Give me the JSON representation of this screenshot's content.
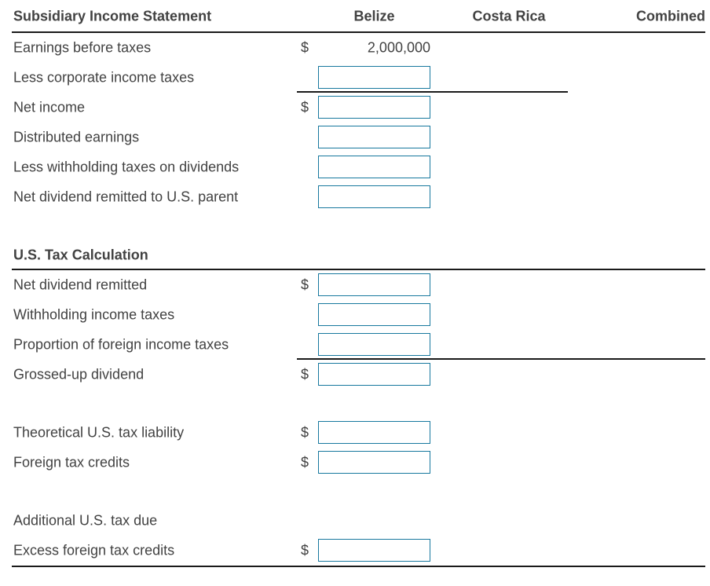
{
  "header": {
    "title": "Subsidiary Income Statement",
    "columns": [
      {
        "label": "Belize"
      },
      {
        "label": "Costa Rica"
      },
      {
        "label": "Combined"
      }
    ]
  },
  "worksheet": {
    "currency_symbol": "$",
    "rows": [
      {
        "type": "data",
        "label": "Earnings before taxes",
        "dollar": true,
        "value": "2,000,000"
      },
      {
        "type": "data",
        "label": "Less corporate income taxes",
        "input": true,
        "underline": "partial"
      },
      {
        "type": "data",
        "label": "Net income",
        "dollar": true,
        "input": true
      },
      {
        "type": "data",
        "label": "Distributed earnings",
        "input": true
      },
      {
        "type": "data",
        "label": "Less withholding taxes on dividends",
        "input": true
      },
      {
        "type": "data",
        "label": "Net dividend remitted to U.S. parent",
        "input": true
      },
      {
        "type": "spacer"
      },
      {
        "type": "section",
        "label": "U.S. Tax Calculation"
      },
      {
        "type": "data",
        "label": "Net dividend remitted",
        "dollar": true,
        "input": true
      },
      {
        "type": "data",
        "label": "Withholding income taxes",
        "input": true
      },
      {
        "type": "data",
        "label": "Proportion of foreign income taxes",
        "input": true,
        "underline": "full"
      },
      {
        "type": "data",
        "label": "Grossed-up dividend",
        "dollar": true,
        "input": true
      },
      {
        "type": "spacer"
      },
      {
        "type": "data",
        "label": "Theoretical U.S. tax liability",
        "dollar": true,
        "input": true
      },
      {
        "type": "data",
        "label": "Foreign tax credits",
        "dollar": true,
        "input": true
      },
      {
        "type": "spacer"
      },
      {
        "type": "data",
        "label": "Additional U.S. tax due"
      },
      {
        "type": "data",
        "label": "Excess foreign tax credits",
        "dollar": true,
        "input": true
      },
      {
        "type": "rule"
      }
    ],
    "input_value": ""
  },
  "colors": {
    "accent": "#17789e",
    "text": "#424242",
    "line": "#1a1a1a"
  }
}
